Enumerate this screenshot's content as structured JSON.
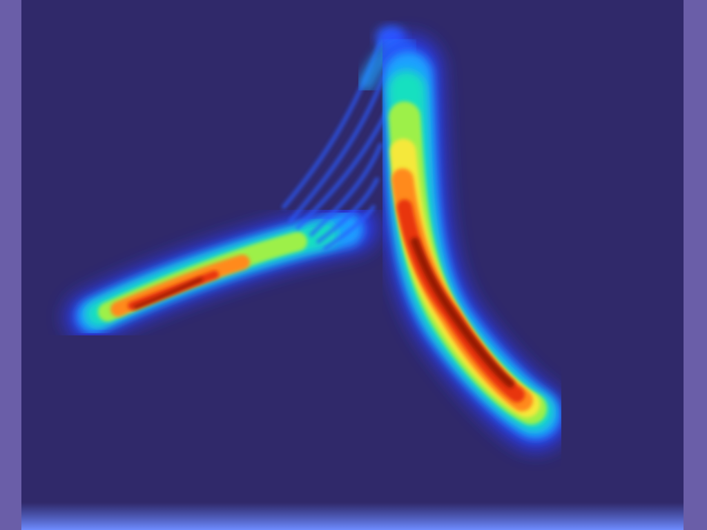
{
  "scene": {
    "description_icon": "heatmap-ridge-surface",
    "colors": {
      "background": "#30296a",
      "side_bars": "#6a5ea8",
      "bottom_glow": "#5f7df0",
      "colormap": [
        "#2b3cff",
        "#1ea0ff",
        "#18e0c0",
        "#9df04a",
        "#f5e83a",
        "#ff8a1a",
        "#e8360e",
        "#8a1206"
      ]
    }
  }
}
